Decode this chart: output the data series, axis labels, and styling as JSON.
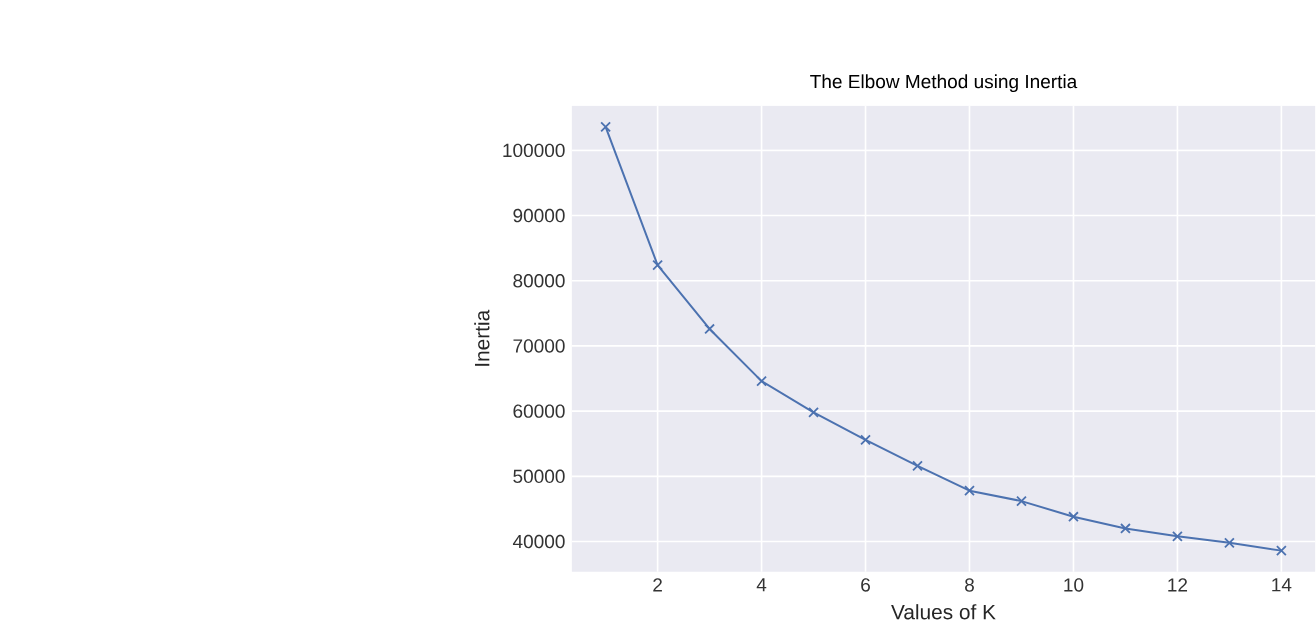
{
  "chart_data": {
    "type": "line",
    "title": "The Elbow Method using Inertia",
    "xlabel": "Values of K",
    "ylabel": "Inertia",
    "x": [
      1,
      2,
      3,
      4,
      5,
      6,
      7,
      8,
      9,
      10,
      11,
      12,
      13,
      14
    ],
    "values": [
      103600,
      82400,
      72600,
      64600,
      59800,
      55600,
      51600,
      47800,
      46200,
      43800,
      42000,
      40800,
      39800,
      38600
    ],
    "color": "#4c72b0",
    "marker": "cross",
    "line_style": "solid",
    "grid": true,
    "xlim": [
      0.35,
      14.65
    ],
    "ylim": [
      35350,
      106850
    ],
    "xticks": [
      2,
      4,
      6,
      8,
      10,
      12,
      14
    ],
    "yticks": [
      40000,
      50000,
      60000,
      70000,
      80000,
      90000,
      100000
    ]
  }
}
